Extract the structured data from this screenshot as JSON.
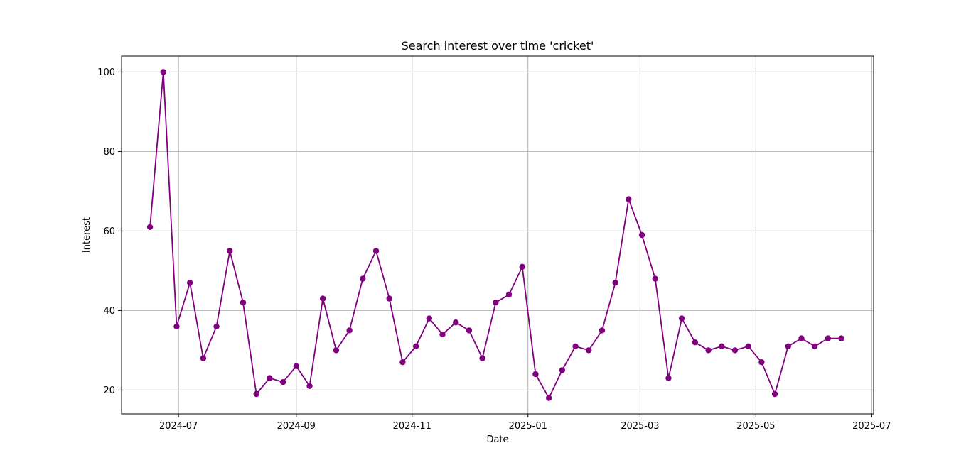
{
  "chart_data": {
    "type": "line",
    "title": "Search interest over time 'cricket'",
    "xlabel": "Date",
    "ylabel": "Interest",
    "grid": true,
    "marker": "circle",
    "color": "#800080",
    "ylim": [
      14,
      104
    ],
    "xlim": [
      "2024-06-01",
      "2025-07-02"
    ],
    "xticks": [
      {
        "date": "2024-07-01",
        "label": "2024-07"
      },
      {
        "date": "2024-09-01",
        "label": "2024-09"
      },
      {
        "date": "2024-11-01",
        "label": "2024-11"
      },
      {
        "date": "2025-01-01",
        "label": "2025-01"
      },
      {
        "date": "2025-03-01",
        "label": "2025-03"
      },
      {
        "date": "2025-05-01",
        "label": "2025-05"
      },
      {
        "date": "2025-07-01",
        "label": "2025-07"
      }
    ],
    "yticks": [
      20,
      40,
      60,
      80,
      100
    ],
    "series": [
      {
        "x": [
          "2024-06-16",
          "2024-06-23",
          "2024-06-30",
          "2024-07-07",
          "2024-07-14",
          "2024-07-21",
          "2024-07-28",
          "2024-08-04",
          "2024-08-11",
          "2024-08-18",
          "2024-08-25",
          "2024-09-01",
          "2024-09-08",
          "2024-09-15",
          "2024-09-22",
          "2024-09-29",
          "2024-10-06",
          "2024-10-13",
          "2024-10-20",
          "2024-10-27",
          "2024-11-03",
          "2024-11-10",
          "2024-11-17",
          "2024-11-24",
          "2024-12-01",
          "2024-12-08",
          "2024-12-15",
          "2024-12-22",
          "2024-12-29",
          "2025-01-05",
          "2025-01-12",
          "2025-01-19",
          "2025-01-26",
          "2025-02-02",
          "2025-02-09",
          "2025-02-16",
          "2025-02-23",
          "2025-03-02",
          "2025-03-09",
          "2025-03-16",
          "2025-03-23",
          "2025-03-30",
          "2025-04-06",
          "2025-04-13",
          "2025-04-20",
          "2025-04-27",
          "2025-05-04",
          "2025-05-11",
          "2025-05-18",
          "2025-05-25",
          "2025-06-01",
          "2025-06-08",
          "2025-06-15"
        ],
        "values": [
          61,
          100,
          36,
          47,
          28,
          36,
          55,
          42,
          19,
          23,
          22,
          26,
          21,
          43,
          30,
          35,
          48,
          55,
          43,
          27,
          31,
          38,
          34,
          37,
          35,
          28,
          42,
          44,
          51,
          24,
          18,
          25,
          31,
          30,
          35,
          47,
          68,
          59,
          48,
          23,
          38,
          32,
          30,
          31,
          30,
          31,
          27,
          19,
          31,
          33,
          31,
          33,
          33
        ]
      }
    ]
  }
}
